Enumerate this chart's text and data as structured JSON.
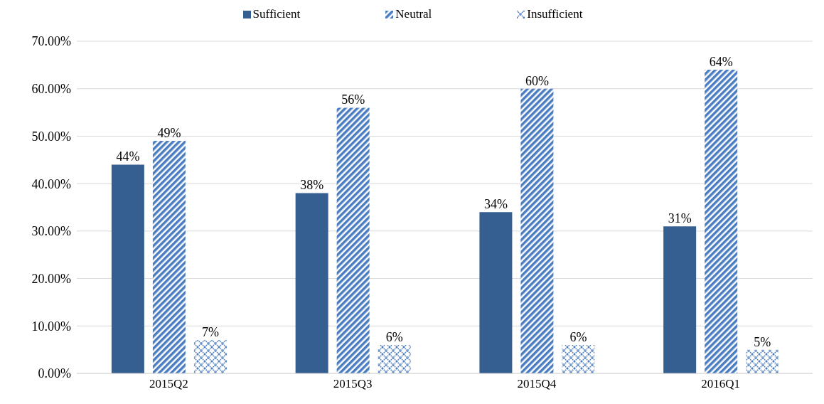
{
  "chart_data": {
    "type": "bar",
    "categories": [
      "2015Q2",
      "2015Q3",
      "2015Q4",
      "2016Q1"
    ],
    "series": [
      {
        "name": "Sufficient",
        "color": "#355f91",
        "values": [
          44,
          38,
          34,
          31
        ],
        "value_labels": [
          "44%",
          "38%",
          "34%",
          "31%"
        ]
      },
      {
        "name": "Neutral",
        "color": "#4a7cc0",
        "values": [
          49,
          56,
          60,
          64
        ],
        "value_labels": [
          "49%",
          "56%",
          "60%",
          "64%"
        ]
      },
      {
        "name": "Insufficient",
        "color": "#4a7cc0",
        "values": [
          7,
          6,
          6,
          5
        ],
        "value_labels": [
          "7%",
          "6%",
          "6%",
          "5%"
        ]
      }
    ],
    "ylim": [
      0,
      70
    ],
    "yticks": [
      {
        "value": 0,
        "label": "0.00%"
      },
      {
        "value": 10,
        "label": "10.00%"
      },
      {
        "value": 20,
        "label": "20.00%"
      },
      {
        "value": 30,
        "label": "30.00%"
      },
      {
        "value": 40,
        "label": "40.00%"
      },
      {
        "value": 50,
        "label": "50.00%"
      },
      {
        "value": 60,
        "label": "60.00%"
      },
      {
        "value": 70,
        "label": "70.00%"
      }
    ],
    "grid": "y",
    "legend": "top"
  }
}
